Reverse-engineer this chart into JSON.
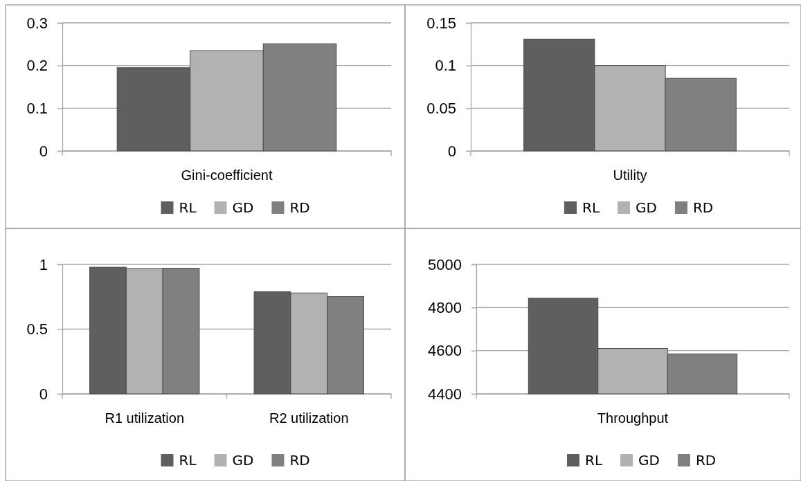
{
  "chart_data": [
    {
      "type": "bar",
      "categories": [
        "Gini-coefficient"
      ],
      "series": [
        {
          "name": "RL",
          "color": "#5f5f5f",
          "values": [
            0.195
          ]
        },
        {
          "name": "GD",
          "color": "#b2b2b2",
          "values": [
            0.235
          ]
        },
        {
          "name": "RD",
          "color": "#808080",
          "values": [
            0.251
          ]
        }
      ],
      "ylim": [
        0,
        0.3
      ],
      "yticks": [
        0,
        0.1,
        0.2,
        0.3
      ],
      "grid": "y",
      "legend": "bottom"
    },
    {
      "type": "bar",
      "categories": [
        "Utility"
      ],
      "series": [
        {
          "name": "RL",
          "color": "#5f5f5f",
          "values": [
            0.131
          ]
        },
        {
          "name": "GD",
          "color": "#b2b2b2",
          "values": [
            0.1
          ]
        },
        {
          "name": "RD",
          "color": "#808080",
          "values": [
            0.085
          ]
        }
      ],
      "ylim": [
        0,
        0.15
      ],
      "yticks": [
        0,
        0.05,
        0.1,
        0.15
      ],
      "grid": "y",
      "legend": "bottom"
    },
    {
      "type": "bar",
      "categories": [
        "R1 utilization",
        "R2 utilization"
      ],
      "series": [
        {
          "name": "RL",
          "color": "#5f5f5f",
          "values": [
            0.978,
            0.789
          ]
        },
        {
          "name": "GD",
          "color": "#b2b2b2",
          "values": [
            0.968,
            0.779
          ]
        },
        {
          "name": "RD",
          "color": "#808080",
          "values": [
            0.97,
            0.751
          ]
        }
      ],
      "ylim": [
        0,
        1
      ],
      "yticks": [
        0,
        0.5,
        1
      ],
      "grid": "y",
      "legend": "bottom"
    },
    {
      "type": "bar",
      "categories": [
        "Throughput"
      ],
      "series": [
        {
          "name": "RL",
          "color": "#5f5f5f",
          "values": [
            4843
          ]
        },
        {
          "name": "GD",
          "color": "#b2b2b2",
          "values": [
            4610
          ]
        },
        {
          "name": "RD",
          "color": "#808080",
          "values": [
            4585
          ]
        }
      ],
      "ylim": [
        4400,
        5000
      ],
      "yticks": [
        4400,
        4600,
        4800,
        5000
      ],
      "grid": "y",
      "legend": "bottom"
    }
  ]
}
